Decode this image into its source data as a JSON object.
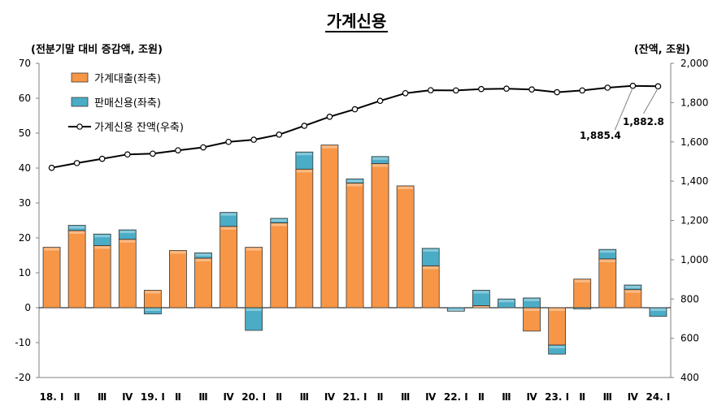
{
  "chart_data": {
    "type": "bar+line",
    "title": "가계신용",
    "left_unit": "(전분기말 대비 증감액, 조원)",
    "right_unit": "(잔액, 조원)",
    "left_ylim": [
      -20,
      70
    ],
    "left_ticks": [
      "70",
      "60",
      "50",
      "40",
      "30",
      "20",
      "10",
      "0",
      "-10",
      "-20"
    ],
    "right_ylim": [
      400,
      2000
    ],
    "right_ticks": [
      "2,000",
      "1,800",
      "1,600",
      "1,400",
      "1,200",
      "1,000",
      "800",
      "600",
      "400"
    ],
    "categories": [
      "18. Ⅰ",
      "Ⅱ",
      "Ⅲ",
      "Ⅳ",
      "19. Ⅰ",
      "Ⅱ",
      "Ⅲ",
      "Ⅳ",
      "20. Ⅰ",
      "Ⅱ",
      "Ⅲ",
      "Ⅳ",
      "21. Ⅰ",
      "Ⅱ",
      "Ⅲ",
      "Ⅳ",
      "22. Ⅰ",
      "Ⅱ",
      "Ⅲ",
      "Ⅳ",
      "23. Ⅰ",
      "Ⅱ",
      "Ⅲ",
      "Ⅳ",
      "24. Ⅰ"
    ],
    "series": [
      {
        "name": "가계대출(좌축)",
        "axis": "left",
        "kind": "bar",
        "color": "#F79646",
        "values": [
          17.3,
          22.1,
          17.8,
          19.6,
          5.0,
          16.4,
          14.2,
          23.3,
          17.3,
          24.3,
          39.7,
          46.6,
          35.7,
          41.3,
          34.9,
          12.0,
          0.0,
          0.6,
          0.0,
          -6.7,
          -10.7,
          8.2,
          14.0,
          5.2,
          0.0
        ]
      },
      {
        "name": "판매신용(좌축)",
        "axis": "left",
        "kind": "bar",
        "color": "#4BACC6",
        "values": [
          0.0,
          1.5,
          3.3,
          2.7,
          -1.8,
          0.0,
          1.5,
          4.0,
          -6.5,
          1.3,
          4.9,
          0.0,
          1.2,
          2.0,
          0.0,
          5.0,
          -1.0,
          4.4,
          2.5,
          2.8,
          -2.6,
          -0.4,
          2.7,
          1.3,
          -2.5
        ]
      },
      {
        "name": "가계신용 잔액(우축)",
        "axis": "right",
        "kind": "line",
        "color": "#000000",
        "values": [
          1468,
          1492,
          1514,
          1536,
          1540,
          1557,
          1572,
          1600,
          1611,
          1637,
          1682,
          1728,
          1766,
          1809,
          1848,
          1863,
          1862,
          1869,
          1871,
          1867,
          1853,
          1862,
          1876,
          1885.4,
          1882.8
        ]
      }
    ],
    "annotations": [
      {
        "text": "1,885.4",
        "category_index": 23,
        "series": "가계신용 잔액(우축)"
      },
      {
        "text": "1,882.8",
        "category_index": 24,
        "series": "가계신용 잔액(우축)"
      }
    ],
    "legend_position": "top-left"
  }
}
